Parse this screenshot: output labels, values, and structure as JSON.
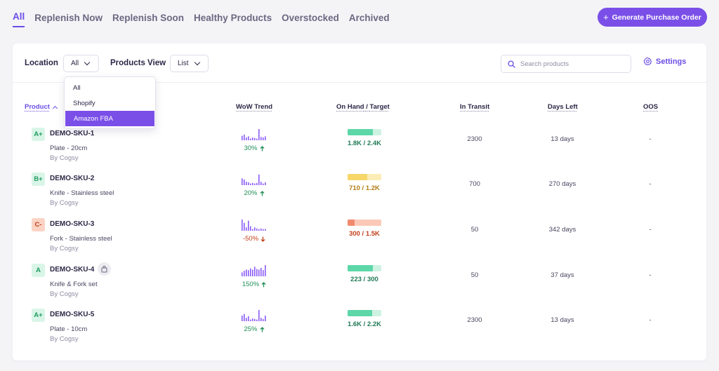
{
  "tabs": [
    {
      "label": "All",
      "active": true
    },
    {
      "label": "Replenish Now"
    },
    {
      "label": "Replenish Soon"
    },
    {
      "label": "Healthy Products"
    },
    {
      "label": "Overstocked"
    },
    {
      "label": "Archived"
    }
  ],
  "generate_button": {
    "label": "Generate Purchase Order",
    "icon": "plus-icon"
  },
  "filters": {
    "location_label": "Location",
    "location_value": "All",
    "view_label": "Products View",
    "view_value": "List",
    "location_options": [
      "All",
      "Shopify",
      "Amazon FBA"
    ],
    "highlighted_option": "Amazon FBA"
  },
  "search": {
    "placeholder": "Search products"
  },
  "settings": {
    "label": "Settings"
  },
  "columns": {
    "product": "Product",
    "trend": "WoW Trend",
    "onhand": "On Hand",
    "target": "Target",
    "transit": "In Transit",
    "days_left": "Days Left",
    "oos": "OOS"
  },
  "colors": {
    "accent": "#7a4fe8",
    "up": "#1f8f57",
    "down": "#c2401a",
    "spark": "#8b5cf6"
  },
  "rows": [
    {
      "grade": "A+",
      "grade_bg": "#d9f5e8",
      "grade_fg": "#1f9a5f",
      "sku": "DEMO-SKU-1",
      "desc": "Plate - 20cm",
      "by": "By Cogsy",
      "trend": "30%",
      "trend_dir": "up",
      "spark": [
        0.4,
        0.5,
        0.25,
        0.35,
        0.15,
        0.25,
        0.2,
        0.15,
        1.0,
        0.3,
        0.25,
        0.35
      ],
      "onhand": "1.8K",
      "target": "2.4K",
      "fill": 0.75,
      "bar_color": "#5dd6a8",
      "bar_bg": "#cdf2e2",
      "text_color": "#1f7a55",
      "transit": "2300",
      "days_left": "13 days",
      "oos": "-",
      "bag": false
    },
    {
      "grade": "B+",
      "grade_bg": "#d9f5e8",
      "grade_fg": "#1f9a5f",
      "sku": "DEMO-SKU-2",
      "desc": "Knife - Stainless steel",
      "by": "By Cogsy",
      "trend": "20%",
      "trend_dir": "up",
      "spark": [
        0.6,
        0.5,
        0.3,
        0.25,
        0.15,
        0.2,
        0.15,
        0.2,
        0.95,
        0.3,
        0.15,
        0.25
      ],
      "onhand": "710",
      "target": "1.2K",
      "fill": 0.59,
      "bar_color": "#f6d768",
      "bar_bg": "#fbedb5",
      "text_color": "#b07d12",
      "transit": "700",
      "days_left": "270 days",
      "oos": "-",
      "bag": false
    },
    {
      "grade": "C-",
      "grade_bg": "#fbd3c5",
      "grade_fg": "#c2401a",
      "sku": "DEMO-SKU-3",
      "desc": "Fork - Stainless steel",
      "by": "By Cogsy",
      "trend": "-50%",
      "trend_dir": "down",
      "spark": [
        1.0,
        0.7,
        0.3,
        0.9,
        0.4,
        0.15,
        0.3,
        0.2,
        0.15,
        0.2,
        0.15,
        0.15
      ],
      "onhand": "300",
      "target": "1.5K",
      "fill": 0.2,
      "bar_color": "#f08a6e",
      "bar_bg": "#fcc9b8",
      "text_color": "#c2401a",
      "transit": "50",
      "days_left": "342 days",
      "oos": "-",
      "bag": false
    },
    {
      "grade": "A",
      "grade_bg": "#d9f5e8",
      "grade_fg": "#1f9a5f",
      "sku": "DEMO-SKU-4",
      "desc": "Knife & Fork set",
      "by": "By Cogsy",
      "trend": "150%",
      "trend_dir": "up",
      "spark": [
        0.35,
        0.5,
        0.6,
        0.55,
        0.7,
        0.6,
        0.85,
        0.65,
        0.6,
        0.75,
        0.55,
        1.0
      ],
      "onhand": "223",
      "target": "300",
      "fill": 0.74,
      "bar_color": "#5dd6a8",
      "bar_bg": "#cdf2e2",
      "text_color": "#1f7a55",
      "transit": "50",
      "days_left": "37 days",
      "oos": "-",
      "bag": true
    },
    {
      "grade": "A+",
      "grade_bg": "#d9f5e8",
      "grade_fg": "#1f9a5f",
      "sku": "DEMO-SKU-5",
      "desc": "Plate - 10cm",
      "by": "By Cogsy",
      "trend": "25%",
      "trend_dir": "up",
      "spark": [
        0.5,
        0.65,
        0.3,
        0.45,
        0.15,
        0.25,
        0.2,
        0.15,
        1.0,
        0.3,
        0.2,
        0.5
      ],
      "onhand": "1.6K",
      "target": "2.2K",
      "fill": 0.73,
      "bar_color": "#5dd6a8",
      "bar_bg": "#cdf2e2",
      "text_color": "#1f7a55",
      "transit": "2300",
      "days_left": "13 days",
      "oos": "-",
      "bag": false
    }
  ]
}
